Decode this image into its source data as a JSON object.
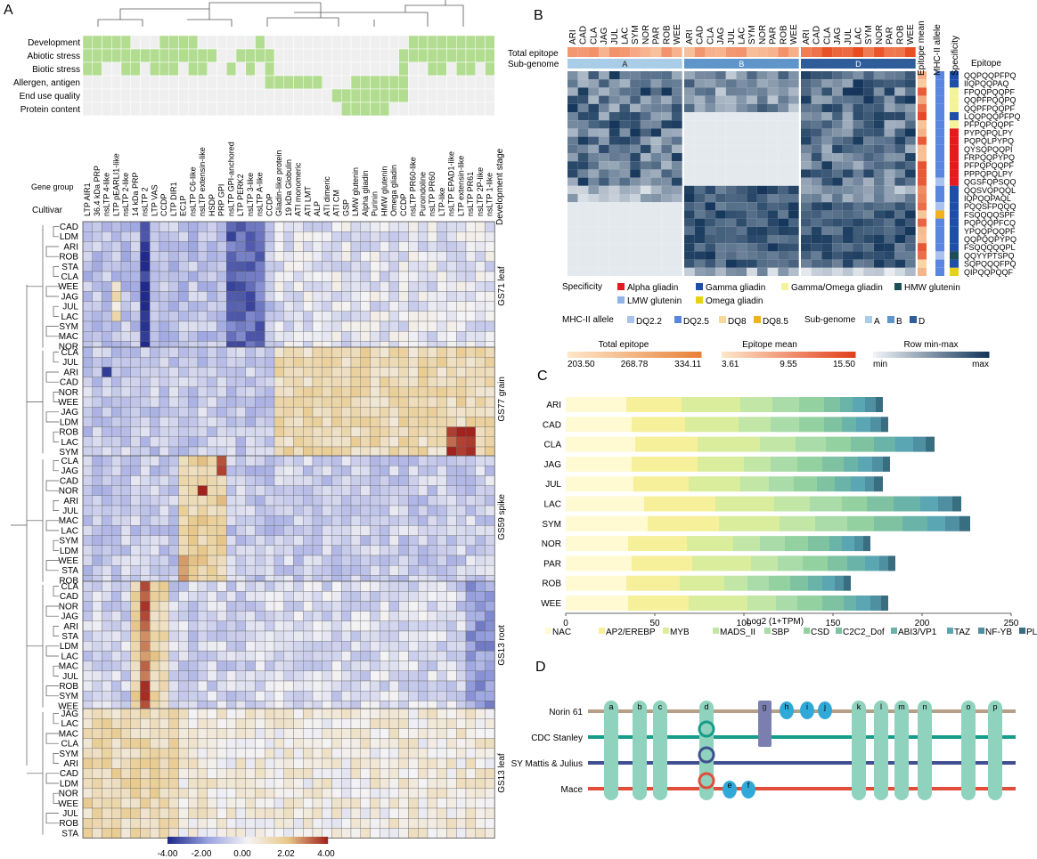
{
  "panel_labels": {
    "a": "A",
    "b": "B",
    "c": "C",
    "d": "D"
  },
  "panel_a": {
    "row_header_labels": {
      "gene_group": "Gene group",
      "cultivar": "Cultivar"
    },
    "dev_stage_title": "Development stage",
    "categories": [
      "Development",
      "Abiotic stress",
      "Biotic stress",
      "Allergen, antigen",
      "End use quality",
      "Protein content"
    ],
    "genes": [
      "LTP AIR1",
      "36.4 kDa PRP",
      "nsLTP 4-like",
      "LTP pEARLI1-like",
      "nsLTP 2-like",
      "14 kDa PRP",
      "nsLTP 2",
      "LTP VAS",
      "CCDP",
      "LTP DIR1",
      "EC1P",
      "nsLTP C6-like",
      "nsLTP extensin-like",
      "HSDP",
      "PRP GPI",
      "nsLTP GPI-anchored",
      "LTP PERK2",
      "nsLTP 3-like",
      "nsLTP A-like",
      "CCDP",
      "Gliadin-like protein",
      "19 kDa Globulin",
      "ATI monomeric",
      "ATI LMT",
      "ALP",
      "ATI dimeric",
      "ATI CM",
      "GSP",
      "LMW glutenin",
      "Alpha gliadin",
      "Purinin",
      "HMW glutenin",
      "Omega gliadin",
      "CCDP",
      "nsLTP PR60-like",
      "Puroindoline",
      "nsLTP PR60",
      "LTP-like",
      "nsLTP EPAD1-like",
      "LTP extensin-like",
      "nsLTP PR61",
      "nsLTP 2P-like",
      "nsLTP 1-like"
    ],
    "stages": [
      {
        "name": "GS71 leaf",
        "cultivars": [
          "CAD",
          "LDM",
          "ARI",
          "ROB",
          "STA",
          "CLA",
          "WEE",
          "JAG",
          "JUL",
          "LAC",
          "SYM",
          "MAC",
          "NOR"
        ]
      },
      {
        "name": "GS77 grain",
        "cultivars": [
          "CLA",
          "JUL",
          "ARI",
          "CAD",
          "NOR",
          "WEE",
          "JAG",
          "LDM",
          "ROB",
          "LAC",
          "SYM"
        ]
      },
      {
        "name": "GS59 spike",
        "cultivars": [
          "CLA",
          "JAG",
          "CAD",
          "NOR",
          "ARI",
          "JUL",
          "MAC",
          "LAC",
          "SYM",
          "LDM",
          "WEE",
          "STA",
          "ROB"
        ]
      },
      {
        "name": "GS13 root",
        "cultivars": [
          "CLA",
          "CAD",
          "NOR",
          "JAG",
          "ARI",
          "STA",
          "LDM",
          "LAC",
          "MAC",
          "JUL",
          "ROB",
          "SYM",
          "WEE"
        ]
      },
      {
        "name": "GS13 leaf",
        "cultivars": [
          "JAG",
          "LAC",
          "MAC",
          "CLA",
          "SYM",
          "ARI",
          "CAD",
          "LDM",
          "NOR",
          "WEE",
          "JUL",
          "ROB",
          "STA"
        ]
      }
    ],
    "colorbar_ticks": [
      "-4.00",
      "-2.00",
      "0.00",
      "2.02",
      "4.00"
    ]
  },
  "panel_b": {
    "cultivars": [
      "ARI",
      "CAD",
      "CLA",
      "JAG",
      "JUL",
      "LAC",
      "SYM",
      "NOR",
      "PAR",
      "ROB",
      "WEE"
    ],
    "row_labels": {
      "total": "Total epitope",
      "sub": "Sub-genome"
    },
    "subgenomes": [
      "A",
      "B",
      "D"
    ],
    "col_titles": {
      "epitope_mean": "Epitope mean",
      "mhc": "MHC-II allele",
      "specificity": "Specificity",
      "epitope": "Epitope"
    },
    "epitopes": [
      "QQPQQPFPQ",
      "IIQPQQPAQ",
      "FPQQPQQPF",
      "QQPFPQQPQ",
      "QQPFPQQPF",
      "LQQPQQPFPQ",
      "PFPQPQQPF",
      "PYPQPQLPY",
      "PQPQLPYPQ",
      "QYSQPQQPI",
      "FRPQQPYPQ",
      "PFPQPQQPF",
      "PPPQPQLPY",
      "QGSFQPSQQ",
      "QQSVQPQQL",
      "IQPQQPAQL",
      "PQQSFPQQQ",
      "FSQQQQSPF",
      "PQPQQPFCQ",
      "YPQQPQQPF",
      "QQPQQPYPQ",
      "FSQQQQQPL",
      "QQYYPTSPQ",
      "SQPQQQFPQ",
      "QIPQQPQQF"
    ],
    "specificity_legend": {
      "title": "Specificity",
      "items": [
        {
          "label": "Alpha gliadin",
          "color": "#e41a1c"
        },
        {
          "label": "Gamma gliadin",
          "color": "#1f4ea8"
        },
        {
          "label": "Gamma/Omega gliadin",
          "color": "#f5f39a"
        },
        {
          "label": "HMW glutenin",
          "color": "#1d4e57"
        },
        {
          "label": "LMW glutenin",
          "color": "#8fb4ea"
        },
        {
          "label": "Omega gliadin",
          "color": "#e6d21b"
        }
      ]
    },
    "mhc_legend": {
      "title": "MHC-II allele",
      "items": [
        {
          "label": "DQ2.2",
          "color": "#a9c3ee"
        },
        {
          "label": "DQ2.5",
          "color": "#5b86e0"
        },
        {
          "label": "DQ8",
          "color": "#f7d79b"
        },
        {
          "label": "DQ8.5",
          "color": "#f0b21c"
        }
      ]
    },
    "subgenome_legend": {
      "title": "Sub-genome",
      "items": [
        {
          "label": "A",
          "color": "#a9cde6"
        },
        {
          "label": "B",
          "color": "#5f95c9"
        },
        {
          "label": "D",
          "color": "#2f5d99"
        }
      ]
    },
    "scales": [
      {
        "title": "Total epitope",
        "ticks": [
          "203.50",
          "268.78",
          "334.11"
        ]
      },
      {
        "title": "Epitope mean",
        "ticks": [
          "3.61",
          "9.55",
          "15.50"
        ]
      },
      {
        "title": "Row min-max",
        "ticks": [
          "min",
          "max"
        ]
      }
    ]
  },
  "chart_data": {
    "type": "bar",
    "stacked": true,
    "orientation": "horizontal",
    "categories": [
      "ARI",
      "CAD",
      "CLA",
      "JAG",
      "JUL",
      "LAC",
      "SYM",
      "NOR",
      "PAR",
      "ROB",
      "WEE"
    ],
    "xlabel": "Log2 (1+TPM)",
    "xlim": [
      0,
      250
    ],
    "xticks": [
      "0",
      "50",
      "100",
      "150",
      "200",
      "250"
    ],
    "series": [
      {
        "name": "NAC",
        "color": "#fffad2",
        "values": [
          34,
          37,
          39,
          37,
          38,
          44,
          46,
          35,
          37,
          34,
          35
        ]
      },
      {
        "name": "AP2/EREBP",
        "color": "#f6f09a",
        "values": [
          31,
          30,
          35,
          37,
          31,
          40,
          40,
          33,
          34,
          30,
          34
        ]
      },
      {
        "name": "MYB",
        "color": "#d9ed9c",
        "values": [
          33,
          30,
          35,
          26,
          29,
          33,
          34,
          26,
          33,
          25,
          33
        ]
      },
      {
        "name": "MADS_II",
        "color": "#c2e6a6",
        "values": [
          18,
          18,
          20,
          15,
          16,
          20,
          20,
          15,
          15,
          13,
          16
        ]
      },
      {
        "name": "SBP",
        "color": "#a9dca9",
        "values": [
          15,
          16,
          17,
          15,
          14,
          18,
          18,
          14,
          14,
          12,
          12
        ]
      },
      {
        "name": "CSD",
        "color": "#93d2a0",
        "values": [
          14,
          14,
          14,
          14,
          13,
          14,
          15,
          13,
          14,
          12,
          14
        ]
      },
      {
        "name": "C2C2_Dof",
        "color": "#7fc2a1",
        "values": [
          9,
          10,
          13,
          12,
          10,
          15,
          16,
          12,
          11,
          10,
          12
        ]
      },
      {
        "name": "ABI3/VP1",
        "color": "#6ab3a8",
        "values": [
          7,
          8,
          12,
          8,
          9,
          15,
          14,
          7,
          10,
          8,
          7
        ]
      },
      {
        "name": "TAZ",
        "color": "#5aa6b2",
        "values": [
          7,
          8,
          10,
          8,
          8,
          10,
          10,
          7,
          8,
          7,
          8
        ]
      },
      {
        "name": "NF-YB",
        "color": "#4e8fa1",
        "values": [
          6,
          6,
          7,
          6,
          5,
          8,
          8,
          5,
          5,
          5,
          6
        ]
      },
      {
        "name": "PLATZ",
        "color": "#396e80",
        "values": [
          4,
          4,
          5,
          4,
          5,
          5,
          6,
          4,
          4,
          4,
          4
        ]
      }
    ]
  },
  "panel_d": {
    "tracks": [
      {
        "label": "Norin 61",
        "color": "#b59f86"
      },
      {
        "label": "CDC Stanley",
        "color": "#159c8b"
      },
      {
        "label": "SY Mattis & Julius",
        "color": "#404f90"
      },
      {
        "label": "Mace",
        "color": "#e04d3a"
      }
    ],
    "pills": [
      "a",
      "b",
      "c",
      "d",
      "k",
      "l",
      "m",
      "n",
      "o",
      "p"
    ],
    "box_label": "g",
    "small_top": [
      "h",
      "i",
      "j"
    ],
    "small_bottom": [
      "e",
      "f"
    ]
  }
}
